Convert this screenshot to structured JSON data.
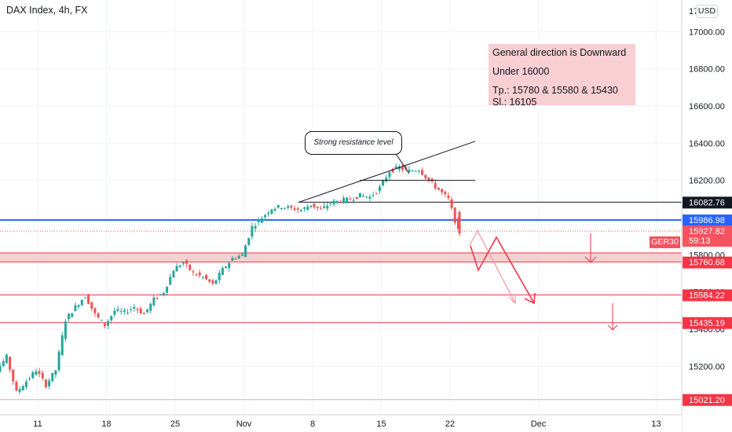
{
  "header": {
    "title": "DAX Index, 4h, FX"
  },
  "currency_button": "USD",
  "note": {
    "line1": "General direction is Downward",
    "line2": "Under 16000",
    "line3": "Tp.:  15780 & 15580 & 15430",
    "line4": "Sl.: 16105"
  },
  "callout": "Strong resistance level",
  "symbol_tag": "GER30",
  "colors": {
    "up": "#26a69a",
    "down": "#ef5350",
    "blue_line": "#2962ff",
    "red_line": "#f23645",
    "zone": "#f7c6c9",
    "note_bg": "#f8cfd2",
    "axis_text": "#131722",
    "grid": "#f0f3fa"
  },
  "chart_data": {
    "type": "candlestick",
    "instrument": "DAX Index, 4h, FX",
    "x_ticks": [
      "11",
      "18",
      "25",
      "Nov",
      "8",
      "15",
      "22",
      "Dec",
      "13"
    ],
    "y_ticks": [
      15200,
      15400,
      15600,
      15800,
      16000,
      16200,
      16400,
      16600,
      16800,
      17000
    ],
    "y_tick_labels": [
      "15200.00",
      "15400.00",
      "15600.00",
      "15800.00",
      "16000.00",
      "16200.00",
      "16400.00",
      "16600.00",
      "16800.00",
      "17000.00"
    ],
    "top_partial_label": "17",
    "ylim": [
      14940,
      17170
    ],
    "price_labels": [
      {
        "value": 16082.76,
        "text": "16082.76",
        "style": "black"
      },
      {
        "value": 15986.98,
        "text": "15986.98",
        "style": "blue"
      },
      {
        "value": 15927.82,
        "text": "15927.82",
        "style": "current",
        "countdown": "59:13"
      },
      {
        "value": 15760.68,
        "text": "15760.68",
        "style": "red"
      },
      {
        "value": 15584.22,
        "text": "15584.22",
        "style": "red"
      },
      {
        "value": 15435.19,
        "text": "15435.19",
        "style": "red"
      },
      {
        "value": 15021.2,
        "text": "15021.20",
        "style": "red-light"
      }
    ],
    "horizontal_levels": [
      {
        "value": 16082.76,
        "color": "black"
      },
      {
        "value": 15986.98,
        "color": "blue"
      },
      {
        "value": 15584.22,
        "color": "red"
      },
      {
        "value": 15435.19,
        "color": "red"
      },
      {
        "value": 15021.2,
        "color": "red-light"
      }
    ],
    "resistance_zone": [
      15760.68,
      15810.0
    ],
    "resistance_lines": [
      {
        "from": [
          "Nov 5",
          16082
        ],
        "to": [
          "Nov 23",
          16410
        ]
      },
      {
        "from": [
          "Nov 12",
          16200
        ],
        "to": [
          "Nov 23",
          16200
        ]
      }
    ],
    "targets": [
      15780,
      15580,
      15430
    ],
    "stop_loss": 16105,
    "price_path": [
      [
        "Oct 5",
        15060
      ],
      [
        "Oct 6",
        15230
      ],
      [
        "Oct 7",
        15180
      ],
      [
        "Oct 8",
        15250
      ],
      [
        "Oct 9",
        15060
      ],
      [
        "Oct 10",
        15120
      ],
      [
        "Oct 11",
        15180
      ],
      [
        "Oct 12",
        15100
      ],
      [
        "Oct 13",
        15180
      ],
      [
        "Oct 14",
        15450
      ],
      [
        "Oct 15",
        15520
      ],
      [
        "Oct 16",
        15580
      ],
      [
        "Oct 17",
        15480
      ],
      [
        "Oct 18",
        15420
      ],
      [
        "Oct 19",
        15500
      ],
      [
        "Oct 20",
        15490
      ],
      [
        "Oct 21",
        15520
      ],
      [
        "Oct 22",
        15480
      ],
      [
        "Oct 23",
        15560
      ],
      [
        "Oct 24",
        15600
      ],
      [
        "Oct 25",
        15720
      ],
      [
        "Oct 26",
        15760
      ],
      [
        "Oct 27",
        15700
      ],
      [
        "Oct 28",
        15680
      ],
      [
        "Oct 29",
        15640
      ],
      [
        "Oct 30",
        15720
      ],
      [
        "Oct 31",
        15780
      ],
      [
        "Nov 1",
        15800
      ],
      [
        "Nov 2",
        15950
      ],
      [
        "Nov 3",
        16000
      ],
      [
        "Nov 4",
        16050
      ],
      [
        "Nov 5",
        16060
      ],
      [
        "Nov 6",
        16050
      ],
      [
        "Nov 7",
        16040
      ],
      [
        "Nov 8",
        16070
      ],
      [
        "Nov 9",
        16040
      ],
      [
        "Nov 10",
        16080
      ],
      [
        "Nov 11",
        16090
      ],
      [
        "Nov 12",
        16100
      ],
      [
        "Nov 13",
        16120
      ],
      [
        "Nov 14",
        16110
      ],
      [
        "Nov 15",
        16160
      ],
      [
        "Nov 16",
        16250
      ],
      [
        "Nov 17",
        16270
      ],
      [
        "Nov 18",
        16250
      ],
      [
        "Nov 19",
        16260
      ],
      [
        "Nov 20",
        16200
      ],
      [
        "Nov 21",
        16150
      ],
      [
        "Nov 22",
        16100
      ],
      [
        "Nov 23",
        15927
      ]
    ]
  }
}
